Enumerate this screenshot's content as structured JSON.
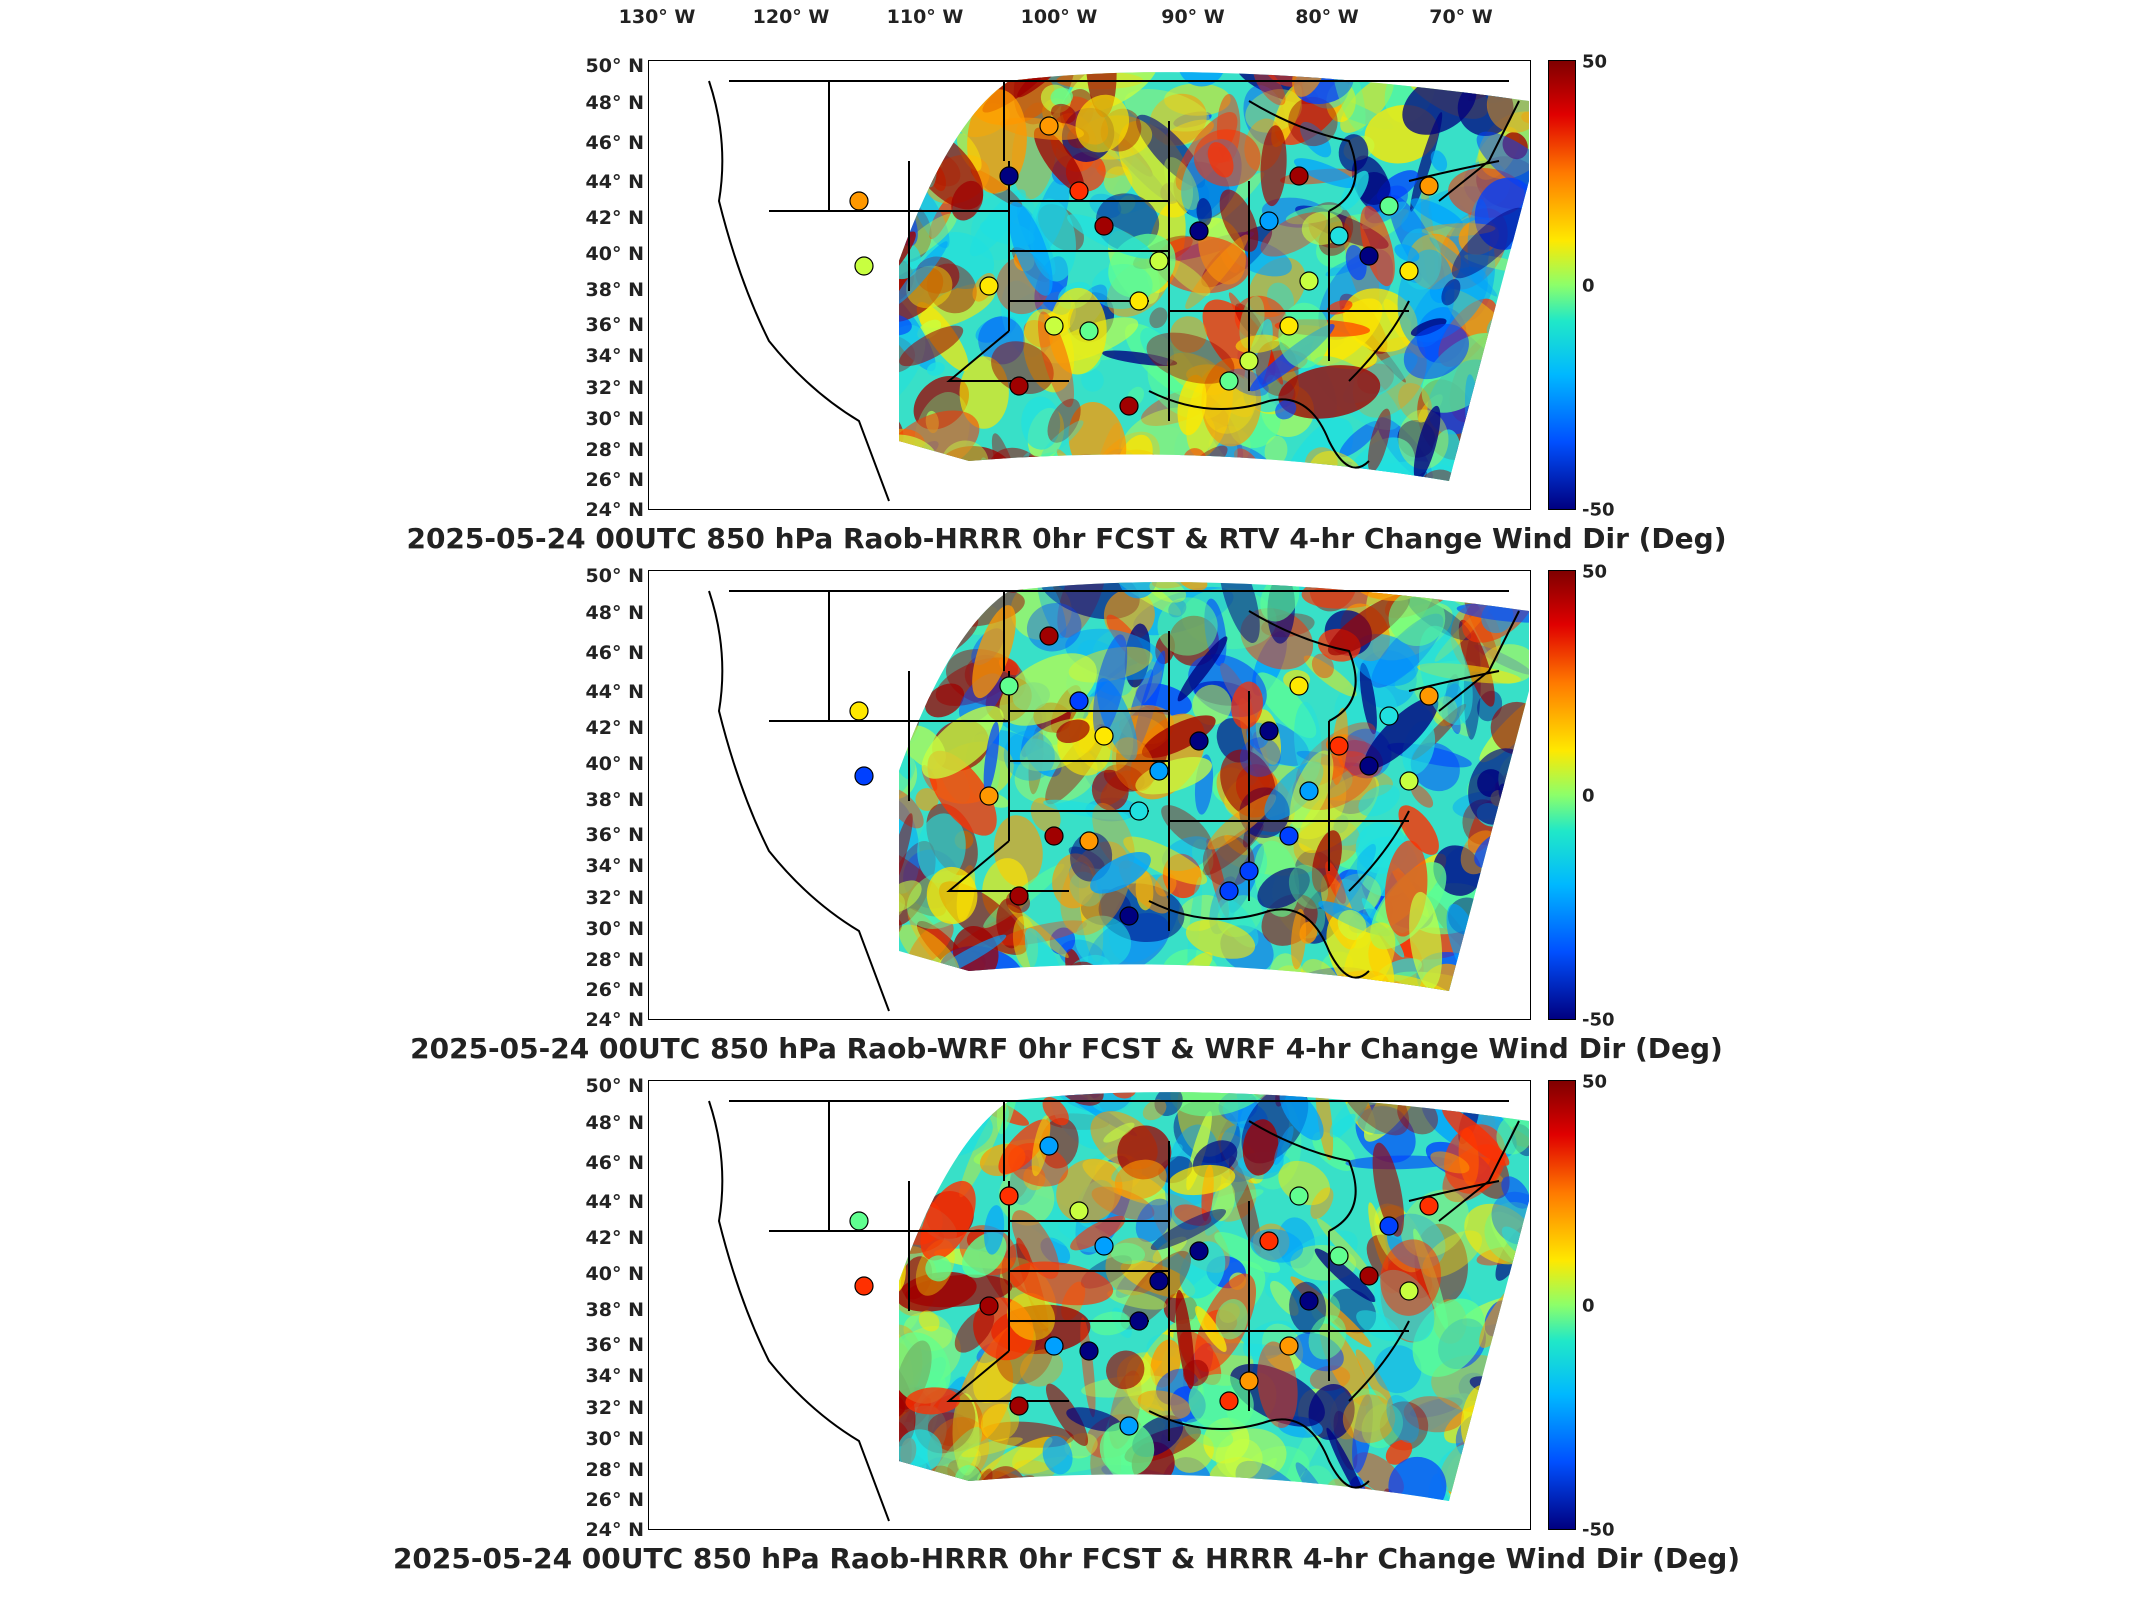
{
  "longitude_labels": [
    "130° W",
    "120° W",
    "110° W",
    "100° W",
    "90° W",
    "80° W",
    "70° W"
  ],
  "latitude_labels": [
    "50° N",
    "48° N",
    "46° N",
    "44° N",
    "42° N",
    "40° N",
    "38° N",
    "36° N",
    "34° N",
    "32° N",
    "30° N",
    "28° N",
    "26° N",
    "24° N"
  ],
  "colorbar": {
    "max_label": "50",
    "mid_label": "0",
    "min_label": "-50",
    "range": [
      -50,
      50
    ]
  },
  "colors": {
    "high": "#800000",
    "mid": "#8cff6a",
    "low": "#000080"
  },
  "panels": [
    {
      "title": "2025-05-24 00UTC 850 hPa Raob-HRRR 0hr FCST & RTV 4-hr Change Wind Dir (Deg)"
    },
    {
      "title": "2025-05-24 00UTC 850 hPa Raob-WRF 0hr FCST & WRF 4-hr Change Wind Dir (Deg)"
    },
    {
      "title": "2025-05-24 00UTC 850 hPa Raob-HRRR 0hr FCST & HRRR 4-hr Change Wind Dir (Deg)"
    }
  ]
}
